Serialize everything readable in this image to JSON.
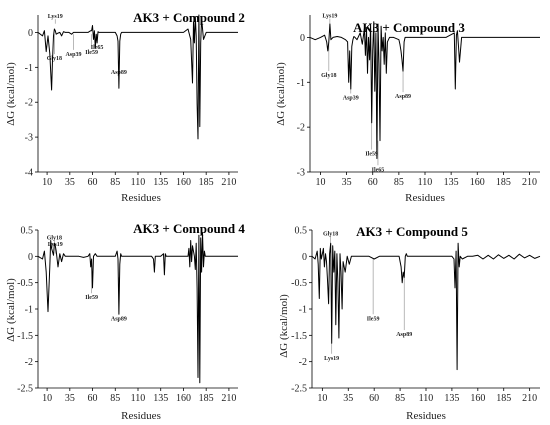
{
  "chart_data": [
    {
      "type": "line",
      "title": "AK3 + Compound 2",
      "xlabel": "Residues",
      "ylabel": "ΔG (kcal/mol)",
      "xlim": [
        0,
        220
      ],
      "ylim": [
        -4,
        0.5
      ],
      "xticks": [
        10,
        35,
        60,
        85,
        110,
        135,
        160,
        185,
        210
      ],
      "yticks": [
        -4,
        -3,
        -2,
        -1,
        0
      ],
      "grid": false,
      "annotations": [
        {
          "label": "Lys19",
          "x": 19,
          "y": 0.25,
          "label_y": 0.38
        },
        {
          "label": "Gly18",
          "x": 18,
          "y": -0.05,
          "label_y": -0.62
        },
        {
          "label": "Asp39",
          "x": 39,
          "y": -0.05,
          "label_y": -0.5
        },
        {
          "label": "Ile59",
          "x": 59,
          "y": -0.05,
          "label_y": -0.45
        },
        {
          "label": "Ile65",
          "x": 65,
          "y": -0.05,
          "label_y": -0.3
        },
        {
          "label": "Asp89",
          "x": 89,
          "y": -0.9,
          "label_y": -1.02
        }
      ],
      "series": [
        {
          "x": [
            0,
            5,
            7,
            9,
            11,
            13,
            15,
            16,
            17,
            18,
            19,
            20,
            22,
            24,
            26,
            28,
            30,
            34,
            37,
            39,
            41,
            45,
            50,
            55,
            58,
            59,
            60,
            61,
            62,
            63,
            64,
            65,
            66,
            67,
            68,
            70,
            75,
            80,
            85,
            87,
            88,
            89,
            90,
            91,
            92,
            95,
            100,
            110,
            120,
            130,
            140,
            150,
            160,
            165,
            168,
            170,
            171,
            172,
            173,
            174,
            175,
            176,
            177,
            178,
            179,
            180,
            182,
            185,
            190,
            200,
            210,
            220
          ],
          "y": [
            0,
            -0.1,
            0.05,
            -0.55,
            -0.1,
            -0.6,
            -1.65,
            -0.8,
            -0.1,
            0.1,
            0.05,
            -0.05,
            -0.02,
            0,
            -0.1,
            0.02,
            0,
            0,
            -0.05,
            0,
            0,
            0,
            0,
            0,
            0.05,
            0.05,
            0.2,
            -0.2,
            0.05,
            -0.45,
            -0.05,
            -0.3,
            0.02,
            0,
            0,
            0,
            0,
            0,
            0,
            -0.1,
            -0.25,
            -1.6,
            -0.25,
            -0.05,
            0,
            0,
            0,
            0,
            0,
            0,
            0,
            0,
            0,
            0.1,
            -0.2,
            -1.45,
            0.3,
            -0.3,
            0.45,
            -0.1,
            -2.05,
            -3.05,
            0.5,
            -2.7,
            -0.3,
            0.4,
            -0.2,
            0,
            0,
            0,
            0,
            0
          ]
        }
      ]
    },
    {
      "type": "line",
      "title": "AK3 + Compound 3",
      "xlabel": "Residues",
      "ylabel": "ΔG (kcal/mol)",
      "xlim": [
        0,
        220
      ],
      "ylim": [
        -3,
        0.5
      ],
      "xticks": [
        10,
        35,
        60,
        85,
        110,
        135,
        160,
        185,
        210
      ],
      "yticks": [
        -3,
        -2,
        -1,
        0
      ],
      "grid": false,
      "annotations": [
        {
          "label": "Lys19",
          "x": 19,
          "y": 0.3,
          "label_y": 0.42
        },
        {
          "label": "Gly18",
          "x": 18,
          "y": -0.05,
          "label_y": -0.75
        },
        {
          "label": "Asp39",
          "x": 39,
          "y": -1.15,
          "label_y": -1.25
        },
        {
          "label": "Ile59",
          "x": 59,
          "y": -1.9,
          "label_y": -2.5
        },
        {
          "label": "Ile65",
          "x": 65,
          "y": -2.3,
          "label_y": -2.85
        },
        {
          "label": "Asp89",
          "x": 89,
          "y": -0.75,
          "label_y": -1.22
        }
      ],
      "series": [
        {
          "x": [
            0,
            5,
            10,
            14,
            16,
            17,
            18,
            19,
            20,
            22,
            26,
            30,
            34,
            36,
            37,
            38,
            39,
            40,
            41,
            42,
            43,
            45,
            48,
            50,
            52,
            53,
            54,
            55,
            56,
            57,
            58,
            59,
            60,
            61,
            62,
            63,
            64,
            65,
            66,
            67,
            68,
            69,
            70,
            71,
            72,
            73,
            74,
            76,
            80,
            85,
            86,
            87,
            88,
            89,
            90,
            91,
            95,
            100,
            110,
            120,
            130,
            138,
            139,
            140,
            141,
            142,
            143,
            145,
            150,
            160,
            170,
            180,
            190,
            200,
            210,
            220
          ],
          "y": [
            0,
            -0.05,
            0,
            0.05,
            -0.1,
            -0.3,
            -0.1,
            0.3,
            -0.05,
            0,
            0.02,
            0,
            -0.05,
            -0.1,
            -1.0,
            -0.3,
            -1.15,
            -0.2,
            -0.05,
            0.02,
            0,
            -0.05,
            0.1,
            -0.15,
            0.2,
            -0.4,
            0.2,
            -0.8,
            0,
            -0.5,
            0.3,
            -1.9,
            -0.3,
            0.35,
            -1.2,
            0.1,
            -2.7,
            0.3,
            -0.6,
            -2.3,
            0.25,
            -0.3,
            0,
            -0.6,
            0.1,
            -0.8,
            -0.1,
            0,
            0,
            -0.05,
            -0.15,
            -0.3,
            -0.5,
            -0.75,
            -0.1,
            0,
            0,
            0,
            0,
            0,
            0,
            0.1,
            -1.15,
            0.05,
            0.15,
            -0.2,
            -0.55,
            0,
            0,
            0,
            0,
            0,
            0,
            0,
            0,
            0
          ]
        }
      ]
    },
    {
      "type": "line",
      "title": "AK3 + Compound 4",
      "xlabel": "Residues",
      "ylabel": "ΔG (kcal/mol)",
      "xlim": [
        0,
        220
      ],
      "ylim": [
        -2.5,
        0.5
      ],
      "xticks": [
        10,
        35,
        60,
        85,
        110,
        135,
        160,
        185,
        210
      ],
      "yticks": [
        -2.5,
        -2,
        -1.5,
        -1,
        -0.5,
        0,
        0.5
      ],
      "grid": false,
      "annotations": [
        {
          "label": "Gly18",
          "x": 18,
          "y": 0.2,
          "label_y": 0.3
        },
        {
          "label": "Lys19",
          "x": 19,
          "y": 0.05,
          "label_y": 0.18
        },
        {
          "label": "Ile59",
          "x": 59,
          "y": -0.05,
          "label_y": -0.7
        },
        {
          "label": "Asp89",
          "x": 89,
          "y": -0.4,
          "label_y": -1.1
        }
      ],
      "series": [
        {
          "x": [
            0,
            5,
            7,
            9,
            11,
            13,
            14,
            15,
            17,
            18,
            19,
            20,
            22,
            24,
            26,
            28,
            30,
            35,
            40,
            45,
            50,
            55,
            57,
            58,
            59,
            60,
            61,
            63,
            65,
            70,
            75,
            80,
            85,
            87,
            88,
            89,
            90,
            91,
            92,
            95,
            100,
            110,
            115,
            120,
            125,
            127,
            128,
            129,
            130,
            135,
            138,
            139,
            140,
            141,
            145,
            150,
            155,
            160,
            165,
            166,
            167,
            168,
            169,
            170,
            172,
            173,
            174,
            175,
            176,
            177,
            178,
            179,
            180,
            181,
            182,
            183,
            184,
            186,
            190,
            200,
            210,
            220
          ],
          "y": [
            0,
            -0.05,
            0.1,
            -0.3,
            -1.05,
            -0.2,
            0.3,
            0.15,
            0.02,
            0.25,
            0.2,
            0.1,
            -0.2,
            0.05,
            -0.1,
            0.05,
            0,
            0,
            0,
            0,
            -0.02,
            0,
            0.05,
            -0.2,
            -0.05,
            -0.6,
            0,
            0.05,
            0,
            0,
            0,
            0,
            0,
            0.1,
            -0.05,
            -1.1,
            -0.15,
            0.05,
            0,
            0,
            0,
            0,
            0,
            0,
            0,
            -0.05,
            -0.3,
            0,
            0,
            0,
            0.05,
            -0.35,
            0.05,
            0,
            0,
            0,
            0,
            0,
            0,
            0.15,
            -0.2,
            0.3,
            -0.1,
            0.2,
            0,
            -0.25,
            0.25,
            -0.6,
            -2.3,
            0.4,
            -2.4,
            0.35,
            -0.3,
            0.45,
            -0.2,
            0.1,
            0,
            0,
            0,
            0,
            0,
            0
          ]
        }
      ]
    },
    {
      "type": "line",
      "title": "AK3 + Compound 5",
      "xlabel": "Residues",
      "ylabel": "ΔG (kcal/mol)",
      "xlim": [
        0,
        220
      ],
      "ylim": [
        -2.5,
        0.5
      ],
      "xticks": [
        10,
        35,
        60,
        85,
        110,
        135,
        160,
        185,
        210
      ],
      "yticks": [
        -2.5,
        -2,
        -1.5,
        -1,
        -0.5,
        0,
        0.5
      ],
      "grid": false,
      "annotations": [
        {
          "label": "Gly18",
          "x": 18,
          "y": 0.25,
          "label_y": 0.38
        },
        {
          "label": "Lys19",
          "x": 19,
          "y": -1.65,
          "label_y": -1.85
        },
        {
          "label": "Ile59",
          "x": 59,
          "y": -0.05,
          "label_y": -1.1
        },
        {
          "label": "Asp89",
          "x": 89,
          "y": -0.4,
          "label_y": -1.4
        }
      ],
      "series": [
        {
          "x": [
            0,
            3,
            5,
            6,
            7,
            8,
            9,
            10,
            11,
            12,
            13,
            14,
            15,
            16,
            17,
            18,
            19,
            20,
            21,
            22,
            23,
            24,
            25,
            26,
            27,
            28,
            29,
            30,
            32,
            34,
            36,
            38,
            40,
            45,
            50,
            55,
            60,
            65,
            70,
            75,
            80,
            84,
            85,
            86,
            87,
            88,
            89,
            90,
            91,
            92,
            95,
            100,
            105,
            110,
            115,
            120,
            125,
            130,
            135,
            137,
            138,
            139,
            140,
            141,
            142,
            143,
            145,
            150,
            155,
            160,
            165,
            170,
            175,
            180,
            185,
            190,
            195,
            200,
            205,
            210,
            215,
            220
          ],
          "y": [
            0,
            -0.05,
            0.1,
            -0.15,
            -0.8,
            0.15,
            -0.05,
            0.05,
            0.15,
            -0.2,
            0.05,
            -0.1,
            -0.45,
            -0.9,
            0.05,
            0.25,
            -1.65,
            0.2,
            -0.3,
            0.1,
            -1.3,
            0.05,
            -0.5,
            -1.55,
            0.05,
            -0.3,
            -1.0,
            -0.1,
            -0.3,
            0,
            -0.15,
            0,
            0,
            0,
            0,
            0,
            -0.05,
            0,
            0,
            0,
            0,
            0,
            -0.1,
            -0.2,
            -0.5,
            -0.3,
            -0.4,
            0,
            0.05,
            0,
            0,
            0,
            0,
            0,
            0,
            0,
            0,
            0,
            0,
            -0.05,
            -0.6,
            0.1,
            -2.15,
            0.25,
            -0.2,
            0,
            -0.05,
            0,
            0,
            0.02,
            -0.05,
            0.02,
            -0.05,
            0.03,
            -0.04,
            0.02,
            -0.05,
            0.04,
            -0.03,
            0.02,
            -0.04,
            0
          ]
        }
      ]
    }
  ]
}
